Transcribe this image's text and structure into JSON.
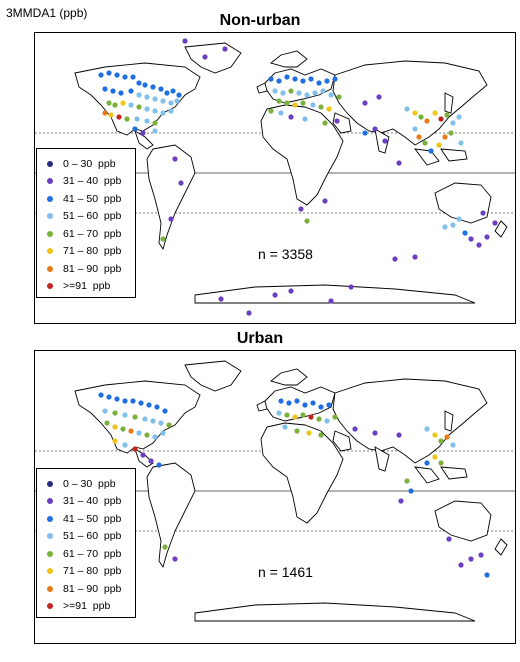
{
  "header": {
    "label": "3MMDA1 (ppb)"
  },
  "legend": {
    "items": [
      {
        "label": "0 – 30  ppb",
        "color": "#2b2a7e"
      },
      {
        "label": "31 – 40  ppb",
        "color": "#6a3fc1"
      },
      {
        "label": "41 – 50  ppb",
        "color": "#1f6fe0"
      },
      {
        "label": "51 – 60  ppb",
        "color": "#7fbfea"
      },
      {
        "label": "61 – 70  ppb",
        "color": "#79b13a"
      },
      {
        "label": "71 – 80  ppb",
        "color": "#f0c419"
      },
      {
        "label": "81 – 90  ppb",
        "color": "#e97a19"
      },
      {
        "label": ">=91  ppb",
        "color": "#c0281f"
      }
    ]
  },
  "maps": [
    {
      "title": "Non-urban",
      "count_label": "n = 3358"
    },
    {
      "title": "Urban",
      "count_label": "n = 1461"
    }
  ]
}
